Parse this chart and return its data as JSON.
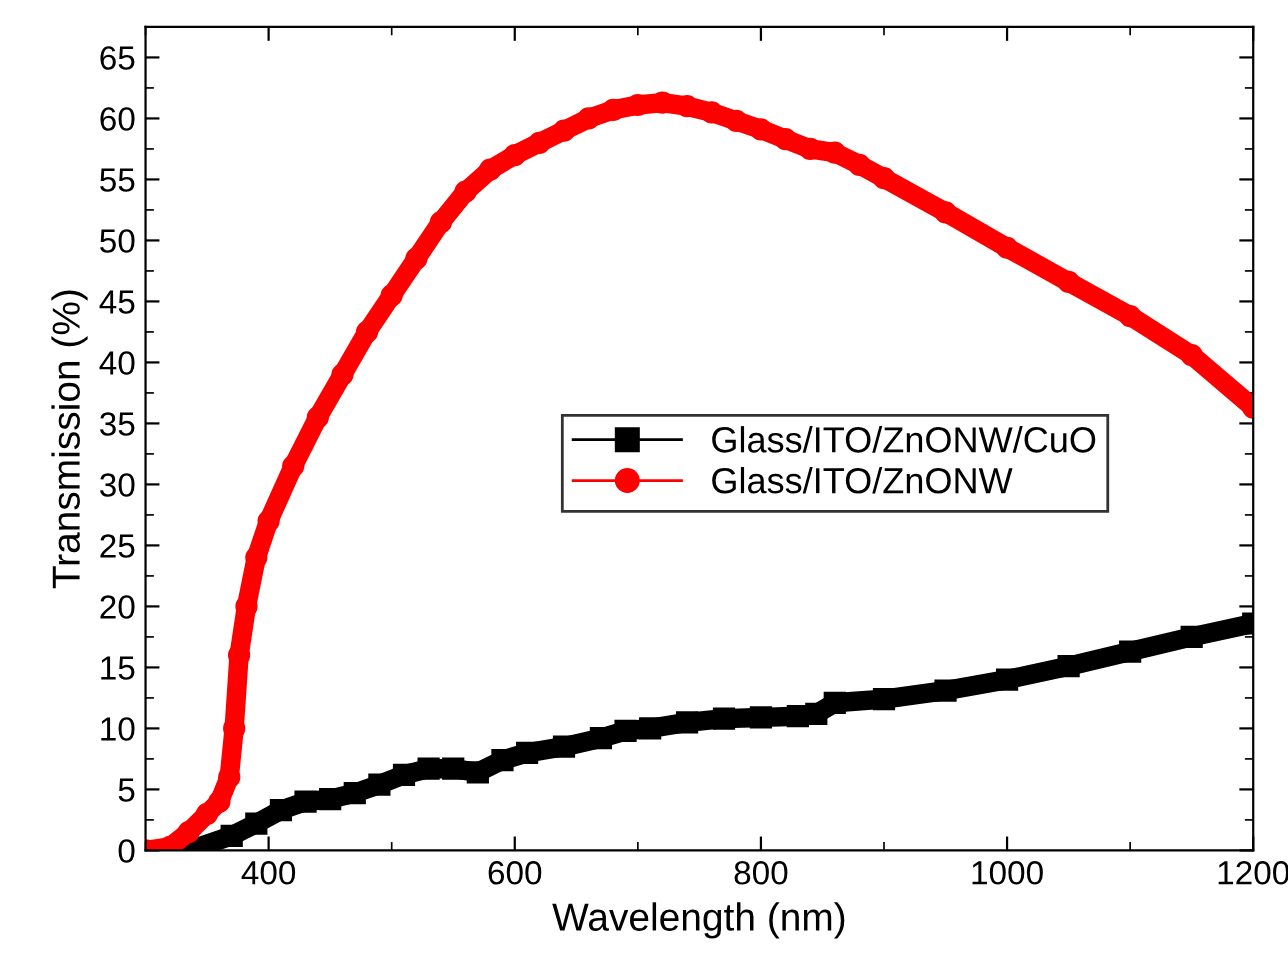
{
  "chart_data": {
    "type": "line",
    "xlabel": "Wavelength (nm)",
    "ylabel": "Transmission (%)",
    "xlim": [
      300,
      1200
    ],
    "xticks": [
      400,
      600,
      800,
      1000,
      1200
    ],
    "ylim": [
      0,
      67.5
    ],
    "yticks": [
      0,
      5,
      10,
      15,
      20,
      25,
      30,
      35,
      40,
      45,
      50,
      55,
      60,
      65
    ],
    "grid": false,
    "legend": "right",
    "series": [
      {
        "name": "Glass/ITO/ZnONW/CuO",
        "color": "#000000",
        "marker": "square",
        "x": [
          335,
          370,
          390,
          410,
          430,
          450,
          470,
          490,
          510,
          530,
          550,
          570,
          590,
          610,
          640,
          670,
          690,
          710,
          740,
          770,
          800,
          830,
          845,
          860,
          900,
          950,
          1000,
          1050,
          1100,
          1150,
          1200
        ],
        "values": [
          0,
          1.2,
          2.2,
          3.3,
          4,
          4.2,
          4.7,
          5.4,
          6.2,
          6.7,
          6.7,
          6.4,
          7.4,
          8,
          8.5,
          9.2,
          9.8,
          10,
          10.5,
          10.8,
          10.9,
          11,
          11.2,
          12.1,
          12.4,
          13.1,
          14,
          15.1,
          16.3,
          17.5,
          18.6
        ]
      },
      {
        "name": "Glass/ITO/ZnONW",
        "color": "#ff0000",
        "marker": "circle",
        "x": [
          300,
          320,
          335,
          350,
          360,
          368,
          372,
          376,
          382,
          390,
          400,
          420,
          440,
          460,
          480,
          500,
          520,
          540,
          560,
          580,
          600,
          620,
          640,
          660,
          680,
          700,
          720,
          740,
          760,
          780,
          800,
          820,
          840,
          860,
          880,
          900,
          950,
          1000,
          1050,
          1100,
          1150,
          1200
        ],
        "values": [
          0,
          0.3,
          1.5,
          3,
          4,
          6,
          10,
          16,
          20,
          24,
          27,
          31.5,
          35.5,
          39,
          42.5,
          45.5,
          48.5,
          51.5,
          54,
          55.8,
          57,
          58,
          59,
          60,
          60.7,
          61.1,
          61.3,
          61,
          60.5,
          59.8,
          59.1,
          58.3,
          57.5,
          57.2,
          56.2,
          55.1,
          52.3,
          49.4,
          46.6,
          43.8,
          40.6,
          36.3
        ]
      }
    ]
  }
}
